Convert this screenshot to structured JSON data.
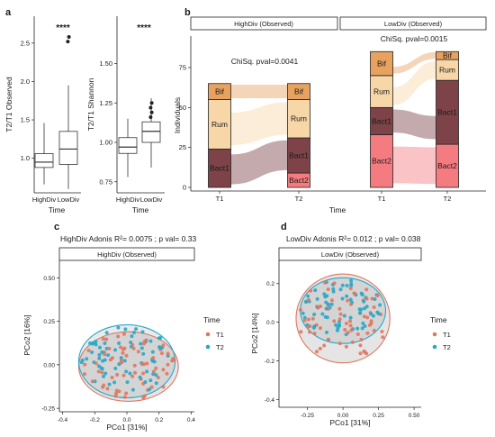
{
  "colors": {
    "T1": "#e0775f",
    "T2": "#28a7c9",
    "Bif": "#e8a25f",
    "Rum": "#f7d6a7",
    "Bact1": "#7d4348",
    "Bact2": "#f47c80",
    "ellipse_fill": "#8a8a8a"
  },
  "chart_data": [
    {
      "panel": "a",
      "type": "boxplot",
      "ylabel": "T2/T1 Observed",
      "xlabel": "Time",
      "categories": [
        "HighDiv",
        "LowDiv"
      ],
      "yticks": [
        "1.0",
        "1.5",
        "2.0",
        "2.5"
      ],
      "ylim": [
        0.55,
        2.85
      ],
      "boxes": [
        {
          "q1": 0.88,
          "median": 0.95,
          "q3": 1.06,
          "whisker_low": 0.66,
          "whisker_high": 1.46
        },
        {
          "q1": 0.92,
          "median": 1.12,
          "q3": 1.35,
          "whisker_low": 0.6,
          "whisker_high": 1.95,
          "outliers": [
            2.52,
            2.58
          ]
        }
      ],
      "significance": "****"
    },
    {
      "panel": "a2",
      "type": "boxplot",
      "ylabel": "T2/T1 Shannon",
      "xlabel": "Time",
      "categories": [
        "HighDiv",
        "LowDiv"
      ],
      "yticks": [
        "0.75",
        "1.00",
        "1.25",
        "1.50"
      ],
      "ylim": [
        0.68,
        1.8
      ],
      "boxes": [
        {
          "q1": 0.93,
          "median": 0.97,
          "q3": 1.03,
          "whisker_low": 0.78,
          "whisker_high": 1.15
        },
        {
          "q1": 1.0,
          "median": 1.07,
          "q3": 1.13,
          "whisker_low": 0.84,
          "whisker_high": 1.28,
          "outliers": [
            1.16,
            1.19,
            1.22,
            1.25
          ]
        }
      ],
      "significance": "****"
    },
    {
      "panel": "b",
      "type": "alluvial",
      "ylabel": "Individuals",
      "xlabel": "Time",
      "x": [
        "T1",
        "T2"
      ],
      "yticks": [
        "0",
        "25",
        "50",
        "75"
      ],
      "facets": [
        {
          "title": "HighDiv (Observed)",
          "stat": "ChiSq. pval=0.0041",
          "T1": [
            {
              "name": "Bact1",
              "value": 24
            },
            {
              "name": "Rum",
              "value": 31
            },
            {
              "name": "Bif",
              "value": 10
            }
          ],
          "T2": [
            {
              "name": "Bact2",
              "value": 9
            },
            {
              "name": "Bact1",
              "value": 22
            },
            {
              "name": "Rum",
              "value": 24
            },
            {
              "name": "Bif",
              "value": 10
            }
          ]
        },
        {
          "title": "LowDiv (Observed)",
          "stat": "ChiSq. pval=0.0015",
          "T1": [
            {
              "name": "Bact2",
              "value": 33
            },
            {
              "name": "Bact1",
              "value": 17
            },
            {
              "name": "Rum",
              "value": 20
            },
            {
              "name": "Bif",
              "value": 15
            }
          ],
          "T2": [
            {
              "name": "Bact2",
              "value": 27
            },
            {
              "name": "Bact1",
              "value": 40
            },
            {
              "name": "Rum",
              "value": 13
            },
            {
              "name": "Bif",
              "value": 5
            }
          ]
        }
      ]
    },
    {
      "panel": "c",
      "type": "scatter",
      "subtitle": "HighDiv Adonis R²= 0.0075 ; p val= 0.33",
      "facet": "HighDiv (Observed)",
      "xlabel": "PCo1 [31%]",
      "ylabel": "PCo2 [16%]",
      "xticks": [
        "-0.4",
        "-0.2",
        "0.0",
        "0.2",
        "0.4"
      ],
      "yticks": [
        "-0.25",
        "0.00",
        "0.25",
        "0.50"
      ],
      "xlim": [
        -0.42,
        0.42
      ],
      "ylim": [
        -0.27,
        0.6
      ],
      "legend_title": "Time",
      "series": [
        {
          "name": "T1",
          "ellipse": {
            "cx": 0.01,
            "cy": -0.01,
            "rx": 0.31,
            "ry": 0.2
          }
        },
        {
          "name": "T2",
          "ellipse": {
            "cx": 0.0,
            "cy": 0.02,
            "rx": 0.3,
            "ry": 0.21
          }
        }
      ]
    },
    {
      "panel": "d",
      "type": "scatter",
      "subtitle": "LowDiv Adonis R²= 0.012 ; p val= 0.038",
      "facet": "LowDiv (Observed)",
      "xlabel": "PCo1 [31%]",
      "ylabel": "PCo2 [14%]",
      "xticks": [
        "-0.25",
        "0.00",
        "0.25",
        "0.50"
      ],
      "yticks": [
        "-0.4",
        "-0.2",
        "0.0",
        "0.2"
      ],
      "xlim": [
        -0.45,
        0.55
      ],
      "ylim": [
        -0.44,
        0.32
      ],
      "legend_title": "Time",
      "series": [
        {
          "name": "T1",
          "ellipse": {
            "cx": 0.0,
            "cy": 0.02,
            "rx": 0.33,
            "ry": 0.23
          }
        },
        {
          "name": "T2",
          "ellipse": {
            "cx": 0.0,
            "cy": 0.06,
            "rx": 0.3,
            "ry": 0.17
          }
        }
      ]
    }
  ],
  "panels": {
    "a": "a",
    "b": "b",
    "c": "c",
    "d": "d"
  }
}
